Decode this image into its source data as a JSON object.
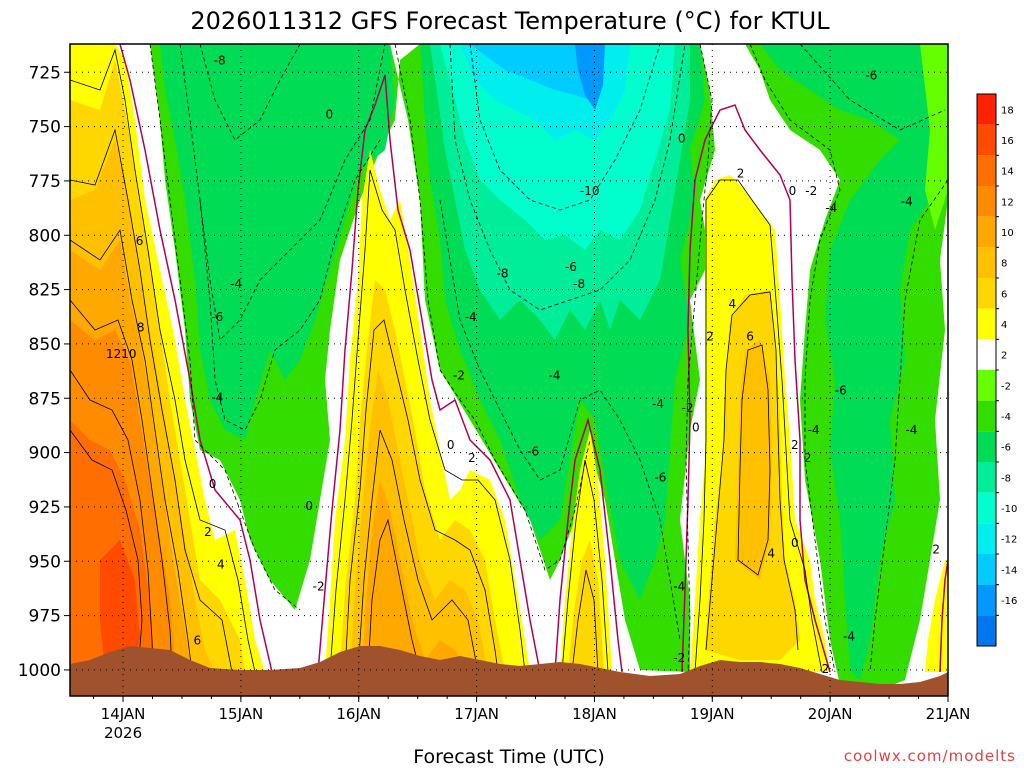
{
  "chart_data": {
    "type": "heatmap",
    "title": "2026011312 GFS Forecast Temperature (°C) for KTUL",
    "xlabel": "Forecast Time (UTC)",
    "ylabel": "",
    "credit": "coolwx.com/modelts",
    "x_ticks": [
      "14JAN",
      "15JAN",
      "16JAN",
      "17JAN",
      "18JAN",
      "19JAN",
      "20JAN",
      "21JAN"
    ],
    "x_sub": "2026",
    "y_ticks": [
      725,
      750,
      775,
      800,
      825,
      850,
      875,
      900,
      925,
      950,
      975,
      1000
    ],
    "ylim": [
      1012,
      712
    ],
    "xlim": [
      13.55,
      21.0
    ],
    "colorbar_levels": [
      18,
      16,
      14,
      12,
      10,
      8,
      6,
      4,
      2,
      -2,
      -4,
      -6,
      -8,
      -10,
      -12,
      -14,
      -16
    ],
    "colorbar_colors": [
      "#ff2200",
      "#ff4a00",
      "#ff6e00",
      "#ff8c00",
      "#ffa800",
      "#ffc000",
      "#ffd700",
      "#ffff00",
      "#ffffff",
      "#66ff00",
      "#33dd00",
      "#00dd55",
      "#00ee99",
      "#00ffcc",
      "#00eeee",
      "#00ccff",
      "#0099ff",
      "#0077ee"
    ],
    "contour_labels": [
      {
        "text": "-8",
        "t": 14.82,
        "p": 720
      },
      {
        "text": "0",
        "t": 15.75,
        "p": 745
      },
      {
        "text": "-10",
        "t": 17.96,
        "p": 780
      },
      {
        "text": "-8",
        "t": 17.22,
        "p": 818
      },
      {
        "text": "-6",
        "t": 17.8,
        "p": 815
      },
      {
        "text": "-8",
        "t": 17.87,
        "p": 823
      },
      {
        "text": "-4",
        "t": 14.96,
        "p": 823
      },
      {
        "text": "-6",
        "t": 14.8,
        "p": 838
      },
      {
        "text": "6",
        "t": 14.14,
        "p": 803
      },
      {
        "text": "8",
        "t": 14.15,
        "p": 843
      },
      {
        "text": "12",
        "t": 13.92,
        "p": 855
      },
      {
        "text": "10",
        "t": 14.05,
        "p": 855
      },
      {
        "text": "-4",
        "t": 16.95,
        "p": 838
      },
      {
        "text": "-2",
        "t": 16.85,
        "p": 865
      },
      {
        "text": "-4",
        "t": 17.66,
        "p": 865
      },
      {
        "text": "-4",
        "t": 14.8,
        "p": 875
      },
      {
        "text": "0",
        "t": 16.78,
        "p": 897
      },
      {
        "text": "2",
        "t": 16.96,
        "p": 903
      },
      {
        "text": "-6",
        "t": 17.48,
        "p": 900
      },
      {
        "text": "0",
        "t": 14.76,
        "p": 915
      },
      {
        "text": "0",
        "t": 15.58,
        "p": 925
      },
      {
        "text": "2",
        "t": 14.72,
        "p": 937
      },
      {
        "text": "4",
        "t": 14.83,
        "p": 952
      },
      {
        "text": "6",
        "t": 14.63,
        "p": 987
      },
      {
        "text": "-2",
        "t": 15.66,
        "p": 962
      },
      {
        "text": "-4",
        "t": 18.54,
        "p": 878
      },
      {
        "text": "-6",
        "t": 18.56,
        "p": 912
      },
      {
        "text": "-4",
        "t": 18.72,
        "p": 962
      },
      {
        "text": "-2",
        "t": 18.72,
        "p": 995
      },
      {
        "text": "-2",
        "t": 18.79,
        "p": 880
      },
      {
        "text": "0",
        "t": 18.86,
        "p": 889
      },
      {
        "text": "0",
        "t": 18.74,
        "p": 756
      },
      {
        "text": "2",
        "t": 19.24,
        "p": 772
      },
      {
        "text": "0",
        "t": 19.68,
        "p": 780
      },
      {
        "text": "-2",
        "t": 19.84,
        "p": 780
      },
      {
        "text": "4",
        "t": 19.17,
        "p": 832
      },
      {
        "text": "2",
        "t": 18.98,
        "p": 847
      },
      {
        "text": "6",
        "t": 19.32,
        "p": 847
      },
      {
        "text": "2",
        "t": 19.7,
        "p": 897
      },
      {
        "text": "2",
        "t": 19.81,
        "p": 903
      },
      {
        "text": "4",
        "t": 19.5,
        "p": 947
      },
      {
        "text": "0",
        "t": 19.7,
        "p": 942
      },
      {
        "text": "-6",
        "t": 20.35,
        "p": 727
      },
      {
        "text": "-4",
        "t": 20.01,
        "p": 788
      },
      {
        "text": "-4",
        "t": 20.65,
        "p": 785
      },
      {
        "text": "-6",
        "t": 20.09,
        "p": 872
      },
      {
        "text": "-4",
        "t": 19.86,
        "p": 890
      },
      {
        "text": "-4",
        "t": 20.69,
        "p": 890
      },
      {
        "text": "2",
        "t": 20.9,
        "p": 945
      },
      {
        "text": "-4",
        "t": 20.16,
        "p": 985
      },
      {
        "text": "2",
        "t": 19.96,
        "p": 1000
      }
    ]
  }
}
